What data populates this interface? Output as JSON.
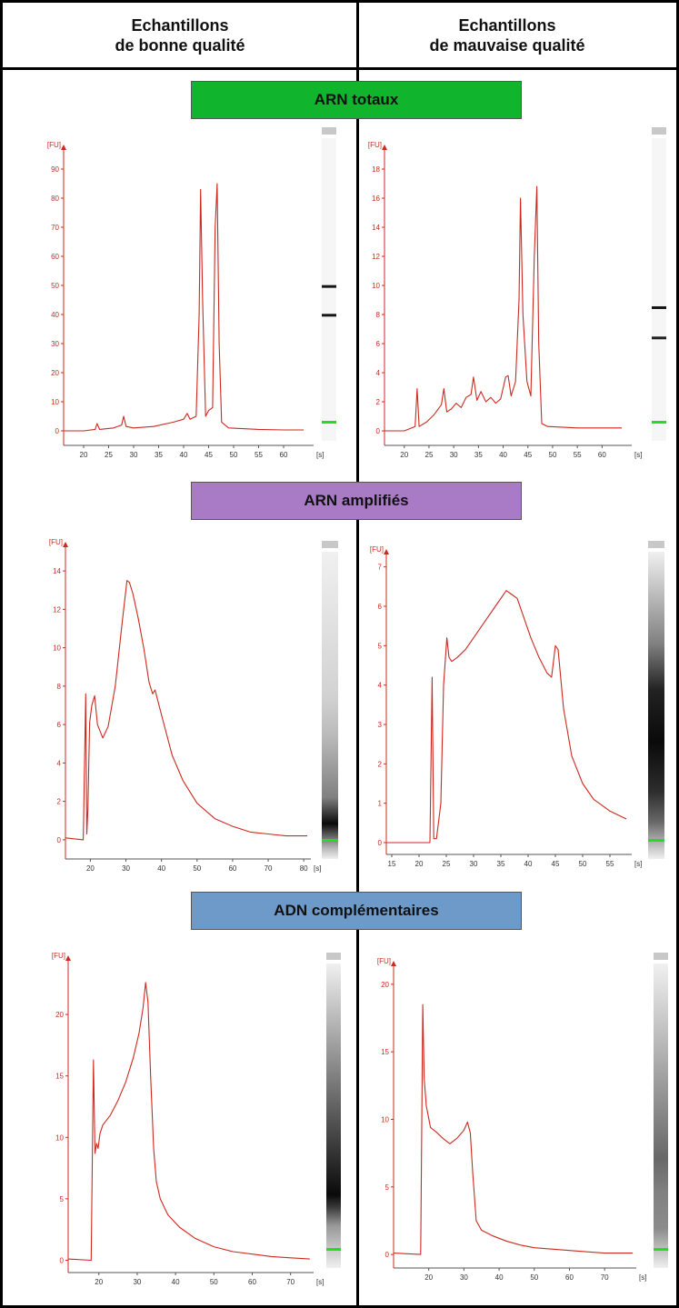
{
  "headers": {
    "left": [
      "Echantillons",
      "de bonne qualité"
    ],
    "right": [
      "Echantillons",
      "de mauvaise qualité"
    ]
  },
  "sections": [
    "ARN totaux",
    "ARN amplifiés",
    "ADN complémentaires"
  ],
  "colors": {
    "section_0": "#10b42d",
    "section_1": "#a97bc6",
    "section_2": "#6e9ac9",
    "trace": "#cc2a1f",
    "marker": "#22dd22"
  },
  "chart_data": [
    {
      "type": "line",
      "title": "ARN totaux — bonne qualité",
      "ylabel": "[FU]",
      "xlabel": "[s]",
      "xlim": [
        16,
        66
      ],
      "ylim": [
        -5,
        95
      ],
      "xticks": [
        20,
        25,
        30,
        35,
        40,
        45,
        50,
        55,
        60
      ],
      "yticks": [
        0,
        10,
        20,
        30,
        40,
        50,
        60,
        70,
        80,
        90
      ],
      "series": [
        {
          "x": [
            16,
            20,
            22.3,
            22.7,
            23.2,
            26,
            27.6,
            28,
            28.5,
            30,
            34,
            38,
            40,
            40.7,
            41.3,
            42.5,
            43.1,
            43.4,
            43.8,
            44.4,
            45,
            45.8,
            46.3,
            46.7,
            47.1,
            47.6,
            49,
            55,
            60,
            64
          ],
          "y": [
            0,
            0,
            0.5,
            2.5,
            0.5,
            1,
            2,
            5,
            1.5,
            1,
            1.5,
            3,
            4,
            6,
            4,
            5,
            40,
            83,
            45,
            5,
            7,
            8,
            70,
            85,
            30,
            3,
            1,
            0.5,
            0.3,
            0.3
          ]
        }
      ],
      "gel_bands": [
        {
          "pos": 0.49,
          "darkness": 0.95
        },
        {
          "pos": 0.585,
          "darkness": 0.95
        }
      ]
    },
    {
      "type": "line",
      "title": "ARN totaux — mauvaise qualité",
      "ylabel": "[FU]",
      "xlabel": "[s]",
      "xlim": [
        16,
        66
      ],
      "ylim": [
        -1,
        19
      ],
      "xticks": [
        20,
        25,
        30,
        35,
        40,
        45,
        50,
        55,
        60
      ],
      "yticks": [
        0,
        2,
        4,
        6,
        8,
        10,
        12,
        14,
        16,
        18
      ],
      "series": [
        {
          "x": [
            16,
            20,
            22.2,
            22.6,
            23,
            24.5,
            26,
            27.5,
            28,
            28.6,
            29.5,
            30.5,
            31.5,
            32.5,
            33.5,
            34,
            34.7,
            35.5,
            36.5,
            37.5,
            38.5,
            39.5,
            40.5,
            41,
            41.6,
            42.5,
            43.2,
            43.5,
            44,
            44.8,
            45.6,
            46.3,
            46.8,
            47.2,
            47.8,
            49,
            55,
            60,
            64
          ],
          "y": [
            0,
            0,
            0.3,
            2.9,
            0.3,
            0.6,
            1.1,
            1.8,
            2.9,
            1.3,
            1.5,
            1.9,
            1.6,
            2.3,
            2.5,
            3.7,
            2.1,
            2.7,
            2,
            2.3,
            1.9,
            2.2,
            3.7,
            3.8,
            2.4,
            3.4,
            9,
            16,
            8,
            3.4,
            2.4,
            12,
            16.8,
            6,
            0.5,
            0.3,
            0.2,
            0.2,
            0.2
          ]
        }
      ],
      "gel_bands": [
        {
          "pos": 0.56,
          "darkness": 0.95
        },
        {
          "pos": 0.66,
          "darkness": 0.9
        }
      ]
    },
    {
      "type": "line",
      "title": "ARN amplifiés — bonne qualité",
      "ylabel": "[FU]",
      "xlabel": "[s]",
      "xlim": [
        13,
        82
      ],
      "ylim": [
        -1,
        15
      ],
      "xticks": [
        20,
        30,
        40,
        50,
        60,
        70,
        80
      ],
      "yticks": [
        0,
        2,
        4,
        6,
        8,
        10,
        12,
        14
      ],
      "series": [
        {
          "x": [
            13,
            18,
            18.7,
            19,
            19.3,
            19.8,
            20.4,
            21.2,
            22,
            23.5,
            25,
            27,
            29,
            30.3,
            31,
            32,
            33.5,
            35,
            36.5,
            37.5,
            38.2,
            40,
            43,
            46,
            50,
            55,
            60,
            65,
            70,
            75,
            81
          ],
          "y": [
            0.1,
            0,
            7.6,
            0.3,
            1.6,
            6.1,
            7,
            7.5,
            6,
            5.3,
            5.9,
            8,
            11.4,
            13.5,
            13.4,
            12.8,
            11.5,
            10,
            8.2,
            7.6,
            7.8,
            6.5,
            4.4,
            3.1,
            1.9,
            1.1,
            0.7,
            0.4,
            0.3,
            0.2,
            0.2
          ]
        }
      ],
      "gel_bands": [
        {
          "pos": 0.47,
          "darkness": 0.15
        },
        {
          "pos": 0.6,
          "darkness": 0.25
        },
        {
          "pos": 0.8,
          "darkness": 0.5
        },
        {
          "pos": 0.885,
          "darkness": 1
        },
        {
          "pos": 0.96,
          "darkness": 0.3
        }
      ]
    },
    {
      "type": "line",
      "title": "ARN amplifiés — mauvaise qualité",
      "ylabel": "[FU]",
      "xlabel": "[s]",
      "xlim": [
        14,
        59
      ],
      "ylim": [
        -0.3,
        7.2
      ],
      "xticks": [
        15,
        20,
        25,
        30,
        35,
        40,
        45,
        50,
        55
      ],
      "yticks": [
        0,
        1,
        2,
        3,
        4,
        5,
        6,
        7
      ],
      "series": [
        {
          "x": [
            14,
            22,
            22.4,
            22.7,
            23.2,
            24,
            24.5,
            25.1,
            25.5,
            26,
            27,
            28.5,
            30,
            32,
            34,
            36,
            37,
            38,
            39,
            40.5,
            42,
            43.5,
            44.3,
            45,
            45.5,
            46.5,
            48,
            50,
            52,
            55,
            58
          ],
          "y": [
            0,
            0,
            4.2,
            0.1,
            0.1,
            1,
            4,
            5.2,
            4.7,
            4.6,
            4.7,
            4.9,
            5.2,
            5.6,
            6,
            6.4,
            6.3,
            6.2,
            5.8,
            5.2,
            4.7,
            4.3,
            4.2,
            5,
            4.9,
            3.4,
            2.2,
            1.5,
            1.1,
            0.8,
            0.6
          ]
        }
      ],
      "gel_bands": [
        {
          "pos": 0.3,
          "darkness": 0.5
        },
        {
          "pos": 0.45,
          "darkness": 0.9
        },
        {
          "pos": 0.62,
          "darkness": 1
        },
        {
          "pos": 0.78,
          "darkness": 0.85
        },
        {
          "pos": 0.88,
          "darkness": 0.6
        }
      ]
    },
    {
      "type": "line",
      "title": "ADN complémentaires — bonne qualité",
      "ylabel": "[FU]",
      "xlabel": "[s]",
      "xlim": [
        12,
        76
      ],
      "ylim": [
        -1,
        24
      ],
      "xticks": [
        20,
        30,
        40,
        50,
        60,
        70
      ],
      "yticks": [
        0,
        5,
        10,
        15,
        20
      ],
      "series": [
        {
          "x": [
            12,
            18,
            18.6,
            19,
            19.4,
            19.8,
            20.3,
            21,
            23,
            25,
            27,
            29,
            30.5,
            31.5,
            32.2,
            32.8,
            33.5,
            34.3,
            35,
            36,
            38,
            41,
            45,
            50,
            55,
            60,
            65,
            70,
            75
          ],
          "y": [
            0.1,
            0,
            16.3,
            8.7,
            9.5,
            9.1,
            10.3,
            11,
            11.8,
            13,
            14.5,
            16.5,
            18.5,
            20.5,
            22.6,
            21,
            15,
            9,
            6.4,
            5,
            3.7,
            2.7,
            1.8,
            1.1,
            0.7,
            0.5,
            0.3,
            0.2,
            0.1
          ]
        }
      ],
      "gel_bands": [
        {
          "pos": 0.76,
          "darkness": 1
        },
        {
          "pos": 0.8,
          "darkness": 0.8
        },
        {
          "pos": 0.86,
          "darkness": 0.4
        }
      ]
    },
    {
      "type": "line",
      "title": "ADN complémentaires — mauvaise qualité",
      "ylabel": "[FU]",
      "xlabel": "[s]",
      "xlim": [
        10,
        79
      ],
      "ylim": [
        -1,
        21
      ],
      "xticks": [
        20,
        30,
        40,
        50,
        60,
        70
      ],
      "yticks": [
        0,
        5,
        10,
        15,
        20
      ],
      "series": [
        {
          "x": [
            10,
            17.7,
            18.3,
            18.7,
            19.3,
            20.5,
            22,
            24,
            26,
            28,
            30,
            31,
            31.8,
            32.5,
            33.5,
            35,
            38,
            42,
            46,
            50,
            55,
            60,
            65,
            70,
            78
          ],
          "y": [
            0.1,
            0,
            18.5,
            13,
            11,
            9.4,
            9.1,
            8.6,
            8.2,
            8.6,
            9.2,
            9.8,
            9,
            6,
            2.5,
            1.8,
            1.4,
            1,
            0.7,
            0.5,
            0.4,
            0.3,
            0.2,
            0.1,
            0.1
          ]
        }
      ],
      "gel_bands": [
        {
          "pos": 0.64,
          "darkness": 0.6
        },
        {
          "pos": 0.75,
          "darkness": 0.5
        },
        {
          "pos": 0.87,
          "darkness": 0.45
        }
      ]
    }
  ]
}
